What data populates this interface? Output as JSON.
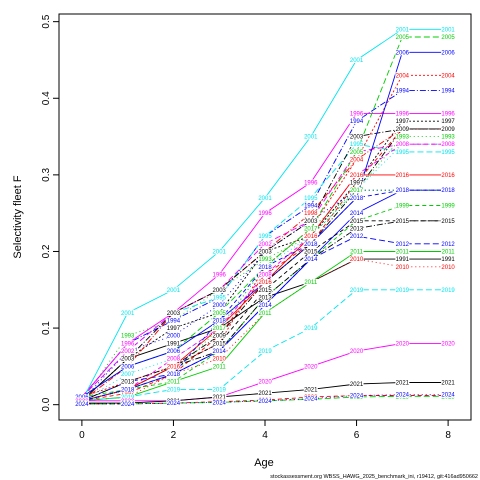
{
  "chart_data": {
    "type": "line",
    "title": "",
    "xlabel": "Age",
    "ylabel": "Selectivity fleet F",
    "xlim": [
      -0.5,
      8.5
    ],
    "ylim": [
      -0.02,
      0.51
    ],
    "xticks": [
      "0",
      "2",
      "4",
      "6",
      "8"
    ],
    "yticks": [
      "0.0",
      "0.1",
      "0.2",
      "0.3",
      "0.4",
      "0.5"
    ],
    "grid": false,
    "legend": "none",
    "footnote": "stockassessment.org WBSS_HAWG_2025_benchmark_ini, r19412, git:416ad950662",
    "x": [
      0,
      1,
      2,
      3,
      4,
      5,
      6,
      7,
      8
    ],
    "series": [
      {
        "name": "1991",
        "color": "#000000",
        "dash": "",
        "values": [
          0.005,
          0.06,
          0.08,
          0.1,
          0.14,
          0.16,
          0.19,
          0.19,
          0.19
        ]
      },
      {
        "name": "1992",
        "color": "#ff0000",
        "dash": "4,3",
        "values": [
          0.005,
          0.015,
          0.04,
          0.09,
          0.17,
          0.21,
          0.29,
          0.36,
          0.36
        ]
      },
      {
        "name": "1993",
        "color": "#00cd00",
        "dash": "1,3",
        "values": [
          0.005,
          0.09,
          0.11,
          0.15,
          0.19,
          0.22,
          0.28,
          0.35,
          0.35
        ]
      },
      {
        "name": "1994",
        "color": "#0000ff",
        "dash": "6,2,1,2",
        "values": [
          0.01,
          0.08,
          0.11,
          0.14,
          0.22,
          0.26,
          0.37,
          0.41,
          0.41
        ]
      },
      {
        "name": "1995",
        "color": "#00e5ee",
        "dash": "6,3",
        "values": [
          0.01,
          0.07,
          0.12,
          0.14,
          0.22,
          0.27,
          0.34,
          0.33,
          0.33
        ]
      },
      {
        "name": "1996",
        "color": "#ff00ff",
        "dash": "",
        "values": [
          0.01,
          0.08,
          0.12,
          0.17,
          0.25,
          0.29,
          0.38,
          0.38,
          0.38
        ]
      },
      {
        "name": "1997",
        "color": "#000000",
        "dash": "2,2",
        "values": [
          0.005,
          0.06,
          0.1,
          0.12,
          0.2,
          0.22,
          0.29,
          0.37,
          0.37
        ]
      },
      {
        "name": "1998",
        "color": "#ff0000",
        "dash": "6,2,1,2",
        "values": [
          0.005,
          0.05,
          0.12,
          0.15,
          0.2,
          0.25,
          0.32,
          0.36,
          0.36
        ]
      },
      {
        "name": "1999",
        "color": "#00cd00",
        "dash": "4,3",
        "values": [
          0.01,
          0.02,
          0.03,
          0.07,
          0.14,
          0.19,
          0.24,
          0.26,
          0.26
        ]
      },
      {
        "name": "2000",
        "color": "#0000ff",
        "dash": "1,3",
        "values": [
          0.005,
          0.07,
          0.09,
          0.13,
          0.2,
          0.24,
          0.28,
          0.28,
          0.28
        ]
      },
      {
        "name": "2001",
        "color": "#00e5ee",
        "dash": "",
        "values": [
          0.005,
          0.12,
          0.15,
          0.2,
          0.27,
          0.35,
          0.45,
          0.49,
          0.49
        ]
      },
      {
        "name": "2002",
        "color": "#ff00ff",
        "dash": "6,3",
        "values": [
          0.01,
          0.07,
          0.12,
          0.15,
          0.21,
          0.24,
          0.33,
          0.34,
          0.34
        ]
      },
      {
        "name": "2003",
        "color": "#000000",
        "dash": "6,2,1,2",
        "values": [
          0.005,
          0.06,
          0.12,
          0.15,
          0.2,
          0.24,
          0.35,
          0.36,
          0.36
        ]
      },
      {
        "name": "2004",
        "color": "#ff0000",
        "dash": "2,2",
        "values": [
          0.01,
          0.03,
          0.05,
          0.08,
          0.18,
          0.23,
          0.32,
          0.43,
          0.43
        ]
      },
      {
        "name": "2005",
        "color": "#00cd00",
        "dash": "6,3",
        "values": [
          0.01,
          0.05,
          0.07,
          0.12,
          0.18,
          0.23,
          0.33,
          0.48,
          0.48
        ]
      },
      {
        "name": "2006",
        "color": "#0000ff",
        "dash": "",
        "values": [
          0.01,
          0.05,
          0.07,
          0.11,
          0.16,
          0.21,
          0.27,
          0.46,
          0.46
        ]
      },
      {
        "name": "2007",
        "color": "#00e5ee",
        "dash": "1,3",
        "values": [
          0.005,
          0.04,
          0.06,
          0.1,
          0.18,
          0.22,
          0.28,
          0.34,
          0.34
        ]
      },
      {
        "name": "2008",
        "color": "#ff00ff",
        "dash": "4,3",
        "values": [
          0.005,
          0.02,
          0.06,
          0.1,
          0.17,
          0.22,
          0.3,
          0.34,
          0.34
        ]
      },
      {
        "name": "2009",
        "color": "#000000",
        "dash": "6,2,1,2",
        "values": [
          0.005,
          0.02,
          0.05,
          0.09,
          0.16,
          0.21,
          0.28,
          0.36,
          0.36
        ]
      },
      {
        "name": "2010",
        "color": "#ff0000",
        "dash": "1,3",
        "values": [
          0.005,
          0.01,
          0.04,
          0.06,
          0.12,
          0.16,
          0.19,
          0.18,
          0.18
        ]
      },
      {
        "name": "2011",
        "color": "#00cd00",
        "dash": "",
        "values": [
          0.005,
          0.01,
          0.03,
          0.05,
          0.12,
          0.16,
          0.2,
          0.2,
          0.2
        ]
      },
      {
        "name": "2012",
        "color": "#0000ff",
        "dash": "6,3",
        "values": [
          0.005,
          0.03,
          0.04,
          0.07,
          0.13,
          0.19,
          0.22,
          0.21,
          0.21
        ]
      },
      {
        "name": "2013",
        "color": "#000000",
        "dash": "6,2,1,2",
        "values": [
          0.005,
          0.03,
          0.05,
          0.07,
          0.14,
          0.19,
          0.23,
          0.24,
          0.24
        ]
      },
      {
        "name": "2014",
        "color": "#0000ff",
        "dash": "",
        "values": [
          0.005,
          0.02,
          0.04,
          0.07,
          0.13,
          0.19,
          0.25,
          0.28,
          0.28
        ]
      },
      {
        "name": "2015",
        "color": "#000000",
        "dash": "4,3",
        "values": [
          0.005,
          0.02,
          0.05,
          0.08,
          0.15,
          0.2,
          0.24,
          0.24,
          0.24
        ]
      },
      {
        "name": "2016",
        "color": "#ff0000",
        "dash": "",
        "values": [
          0.005,
          0.02,
          0.05,
          0.1,
          0.16,
          0.22,
          0.3,
          0.3,
          0.3
        ]
      },
      {
        "name": "2017",
        "color": "#00cd00",
        "dash": "1,3",
        "values": [
          0.005,
          0.02,
          0.04,
          0.1,
          0.18,
          0.23,
          0.28,
          0.28,
          0.28
        ]
      },
      {
        "name": "2018",
        "color": "#0000ff",
        "dash": "4,3",
        "values": [
          0.005,
          0.02,
          0.04,
          0.11,
          0.18,
          0.21,
          0.27,
          0.28,
          0.28
        ]
      },
      {
        "name": "2019",
        "color": "#00e5ee",
        "dash": "6,3",
        "values": [
          0.005,
          0.01,
          0.02,
          0.02,
          0.07,
          0.1,
          0.15,
          0.15,
          0.15
        ]
      },
      {
        "name": "2020",
        "color": "#ff00ff",
        "dash": "",
        "values": [
          0.005,
          0.005,
          0.005,
          0.01,
          0.03,
          0.05,
          0.07,
          0.08,
          0.08
        ]
      },
      {
        "name": "2021",
        "color": "#000000",
        "dash": "",
        "values": [
          0.002,
          0.002,
          0.005,
          0.01,
          0.015,
          0.02,
          0.027,
          0.029,
          0.029
        ]
      },
      {
        "name": "2022",
        "color": "#ff0000",
        "dash": "4,3",
        "values": [
          0.001,
          0.001,
          0.002,
          0.004,
          0.006,
          0.01,
          0.012,
          0.012,
          0.012
        ]
      },
      {
        "name": "2023",
        "color": "#00cd00",
        "dash": "6,3",
        "values": [
          0.001,
          0.001,
          0.002,
          0.003,
          0.005,
          0.007,
          0.01,
          0.011,
          0.011
        ]
      },
      {
        "name": "2024",
        "color": "#0000ff",
        "dash": "1,3",
        "values": [
          0.001,
          0.001,
          0.002,
          0.003,
          0.005,
          0.008,
          0.012,
          0.013,
          0.013
        ]
      }
    ]
  }
}
